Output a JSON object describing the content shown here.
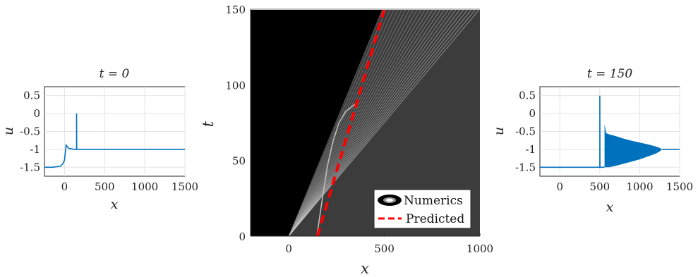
{
  "chart_data": [
    {
      "type": "line",
      "title": "t = 0",
      "xlabel": "x",
      "ylabel": "u",
      "xlim": [
        -250,
        1500
      ],
      "ylim": [
        -1.75,
        0.75
      ],
      "xticks": [
        "0",
        "500",
        "1000",
        "1500"
      ],
      "yticks": [
        "0.5",
        "0",
        "-0.5",
        "-1",
        "-1.5"
      ],
      "grid": true,
      "color": "#0072BD",
      "series": [
        {
          "x": [
            -250,
            -150,
            -50,
            -20,
            0,
            20,
            50,
            100,
            140,
            150,
            150,
            152,
            160,
            200,
            1500
          ],
          "y": [
            -1.5,
            -1.5,
            -1.47,
            -1.4,
            -1.3,
            -0.88,
            -0.97,
            -0.99,
            -1.0,
            -1.0,
            0.0,
            -1.0,
            -1.0,
            -1.0,
            -1.0
          ]
        }
      ]
    },
    {
      "type": "heatmap",
      "xlabel": "x",
      "ylabel": "t",
      "xlim": [
        -200,
        1000
      ],
      "ylim": [
        0,
        150
      ],
      "xticks": [
        "0",
        "500",
        "1000"
      ],
      "yticks": [
        "0",
        "50",
        "100",
        "150"
      ],
      "legend": {
        "position": "bottom-right",
        "entries": [
          {
            "label": "Numerics",
            "style": "ring",
            "color": "#000000"
          },
          {
            "label": "Predicted",
            "style": "dashed",
            "color": "#ff0000"
          }
        ]
      },
      "predicted": {
        "x": [
          150,
          500
        ],
        "t": [
          0,
          150
        ],
        "color": "#ff0000"
      }
    },
    {
      "type": "line",
      "title": "t = 150",
      "xlabel": "x",
      "ylabel": "u",
      "xlim": [
        -250,
        1500
      ],
      "ylim": [
        -1.75,
        0.75
      ],
      "xticks": [
        "0",
        "500",
        "1000",
        "1500"
      ],
      "yticks": [
        "0.5",
        "0",
        "-0.5",
        "-1",
        "-1.5"
      ],
      "grid": true,
      "color": "#0072BD",
      "series": [
        {
          "x": [
            -250,
            490,
            500,
            500,
            502,
            540,
            560
          ],
          "y": [
            -1.5,
            -1.5,
            -1.5,
            0.5,
            -1.5,
            -1.5,
            -1.5
          ]
        }
      ],
      "envelope": {
        "x": [
          560,
          580,
          620,
          700,
          800,
          900,
          1000,
          1100,
          1200,
          1250,
          1280
        ],
        "upper": [
          -0.3,
          -0.55,
          -0.58,
          -0.63,
          -0.7,
          -0.76,
          -0.81,
          -0.86,
          -0.92,
          -0.96,
          -1.0
        ],
        "lower": [
          -1.5,
          -1.5,
          -1.5,
          -1.46,
          -1.4,
          -1.34,
          -1.28,
          -1.2,
          -1.12,
          -1.06,
          -1.0
        ]
      }
    }
  ]
}
